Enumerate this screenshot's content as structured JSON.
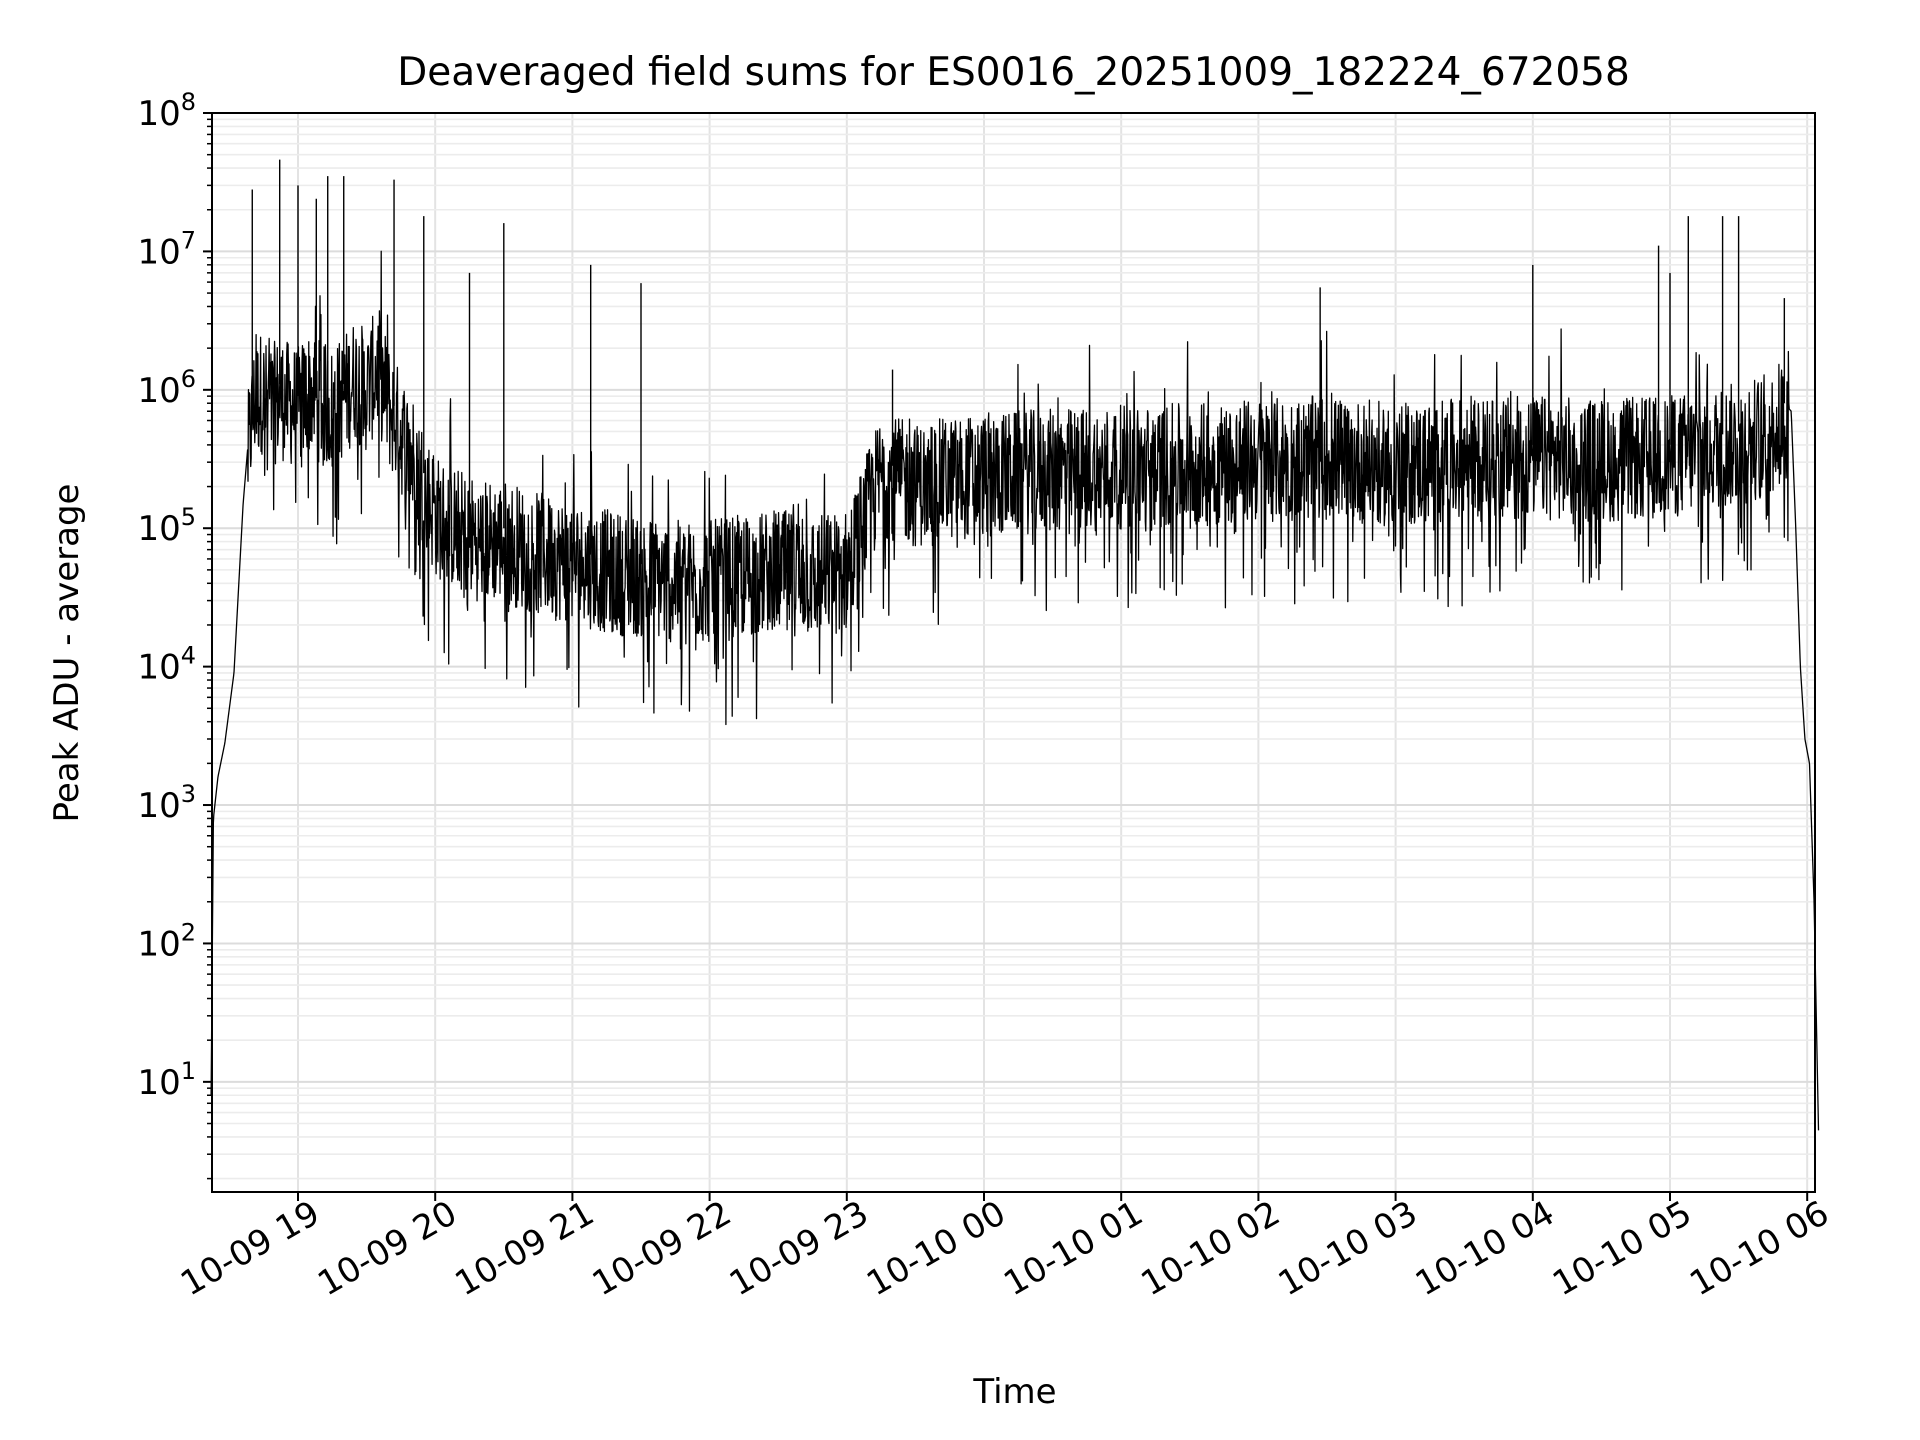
{
  "chart_data": {
    "type": "line",
    "title": "Deaveraged field sums for ES0016_20251009_182224_672058",
    "xlabel": "Time",
    "ylabel": "Peak ADU - average",
    "yscale": "log",
    "ylim": [
      1.6,
      100000000
    ],
    "xlim": [
      "2025-10-09 18:22",
      "2025-10-10 06:05"
    ],
    "grid": true,
    "x_ticks": [
      "10-09 19",
      "10-09 20",
      "10-09 21",
      "10-09 22",
      "10-09 23",
      "10-10 00",
      "10-10 01",
      "10-10 02",
      "10-10 03",
      "10-10 04",
      "10-10 05",
      "10-10 06"
    ],
    "y_ticks": [
      {
        "base": "10",
        "exp": "1",
        "value": 10
      },
      {
        "base": "10",
        "exp": "2",
        "value": 100
      },
      {
        "base": "10",
        "exp": "3",
        "value": 1000
      },
      {
        "base": "10",
        "exp": "4",
        "value": 10000
      },
      {
        "base": "10",
        "exp": "5",
        "value": 100000
      },
      {
        "base": "10",
        "exp": "6",
        "value": 1000000
      },
      {
        "base": "10",
        "exp": "7",
        "value": 10000000
      },
      {
        "base": "10",
        "exp": "8",
        "value": 100000000
      }
    ],
    "line_color": "#000000",
    "series": [
      {
        "x": [
          "2025-10-09 18:22",
          "2025-10-09 18:23",
          "2025-10-09 18:25",
          "2025-10-09 18:28",
          "2025-10-09 18:32",
          "2025-10-09 18:36",
          "2025-10-09 18:39",
          "2025-10-09 18:41",
          "2025-10-09 18:44",
          "2025-10-09 18:46",
          "2025-10-09 18:48",
          "2025-10-09 18:52",
          "2025-10-09 18:55",
          "2025-10-09 19:00",
          "2025-10-09 19:05",
          "2025-10-09 19:10",
          "2025-10-09 19:15",
          "2025-10-09 19:20",
          "2025-10-09 19:25",
          "2025-10-09 19:30",
          "2025-10-09 19:35",
          "2025-10-09 19:40",
          "2025-10-09 19:45",
          "2025-10-09 19:50",
          "2025-10-09 19:55",
          "2025-10-09 20:00",
          "2025-10-09 20:10",
          "2025-10-09 20:20",
          "2025-10-09 20:30",
          "2025-10-09 20:45",
          "2025-10-09 21:00",
          "2025-10-09 21:15",
          "2025-10-09 21:30",
          "2025-10-09 21:45",
          "2025-10-09 22:00",
          "2025-10-09 22:15",
          "2025-10-09 22:30",
          "2025-10-09 22:45",
          "2025-10-09 23:00",
          "2025-10-09 23:15",
          "2025-10-09 23:30",
          "2025-10-09 23:45",
          "2025-10-10 00:00",
          "2025-10-10 00:30",
          "2025-10-10 01:00",
          "2025-10-10 01:30",
          "2025-10-10 02:00",
          "2025-10-10 02:30",
          "2025-10-10 03:00",
          "2025-10-10 03:30",
          "2025-10-10 04:00",
          "2025-10-10 04:30",
          "2025-10-10 05:00",
          "2025-10-10 05:15",
          "2025-10-10 05:30",
          "2025-10-10 05:45",
          "2025-10-10 05:50",
          "2025-10-10 05:53",
          "2025-10-10 05:55",
          "2025-10-10 05:57",
          "2025-10-10 05:59",
          "2025-10-10 06:01",
          "2025-10-10 06:03",
          "2025-10-10 06:05"
        ],
        "y": [
          8,
          800,
          1600,
          2800,
          9000,
          150000,
          600000,
          1000000,
          1200000,
          1000000,
          900000,
          1100000,
          1000000,
          900000,
          1200000,
          1000000,
          900000,
          1100000,
          1500000,
          1200000,
          1800000,
          900000,
          600000,
          400000,
          250000,
          150000,
          120000,
          100000,
          100000,
          80000,
          70000,
          60000,
          55000,
          50000,
          50000,
          55000,
          60000,
          55000,
          60000,
          300000,
          250000,
          280000,
          300000,
          320000,
          340000,
          350000,
          380000,
          400000,
          350000,
          380000,
          400000,
          380000,
          400000,
          450000,
          500000,
          600000,
          800000,
          700000,
          100000,
          10000,
          3000,
          2000,
          200,
          4
        ]
      }
    ],
    "spikes": [
      {
        "x": "2025-10-09 18:40",
        "y": 28000000
      },
      {
        "x": "2025-10-09 18:52",
        "y": 46000000
      },
      {
        "x": "2025-10-09 19:00",
        "y": 30000000
      },
      {
        "x": "2025-10-09 19:08",
        "y": 24000000
      },
      {
        "x": "2025-10-09 19:13",
        "y": 35000000
      },
      {
        "x": "2025-10-09 19:20",
        "y": 35000000
      },
      {
        "x": "2025-10-09 19:42",
        "y": 33000000
      },
      {
        "x": "2025-10-09 19:55",
        "y": 18000000
      },
      {
        "x": "2025-10-09 20:15",
        "y": 7000000
      },
      {
        "x": "2025-10-09 20:30",
        "y": 16000000
      },
      {
        "x": "2025-10-09 21:08",
        "y": 8000000
      },
      {
        "x": "2025-10-09 21:30",
        "y": 5900000
      },
      {
        "x": "2025-10-09 23:20",
        "y": 1400000
      },
      {
        "x": "2025-10-10 02:27",
        "y": 5500000
      },
      {
        "x": "2025-10-10 04:00",
        "y": 8000000
      },
      {
        "x": "2025-10-10 04:55",
        "y": 11000000
      },
      {
        "x": "2025-10-10 05:00",
        "y": 7000000
      },
      {
        "x": "2025-10-10 05:08",
        "y": 18000000
      },
      {
        "x": "2025-10-10 05:23",
        "y": 18000000
      },
      {
        "x": "2025-10-10 05:30",
        "y": 18000000
      },
      {
        "x": "2025-10-10 05:50",
        "y": 4600000
      }
    ]
  }
}
